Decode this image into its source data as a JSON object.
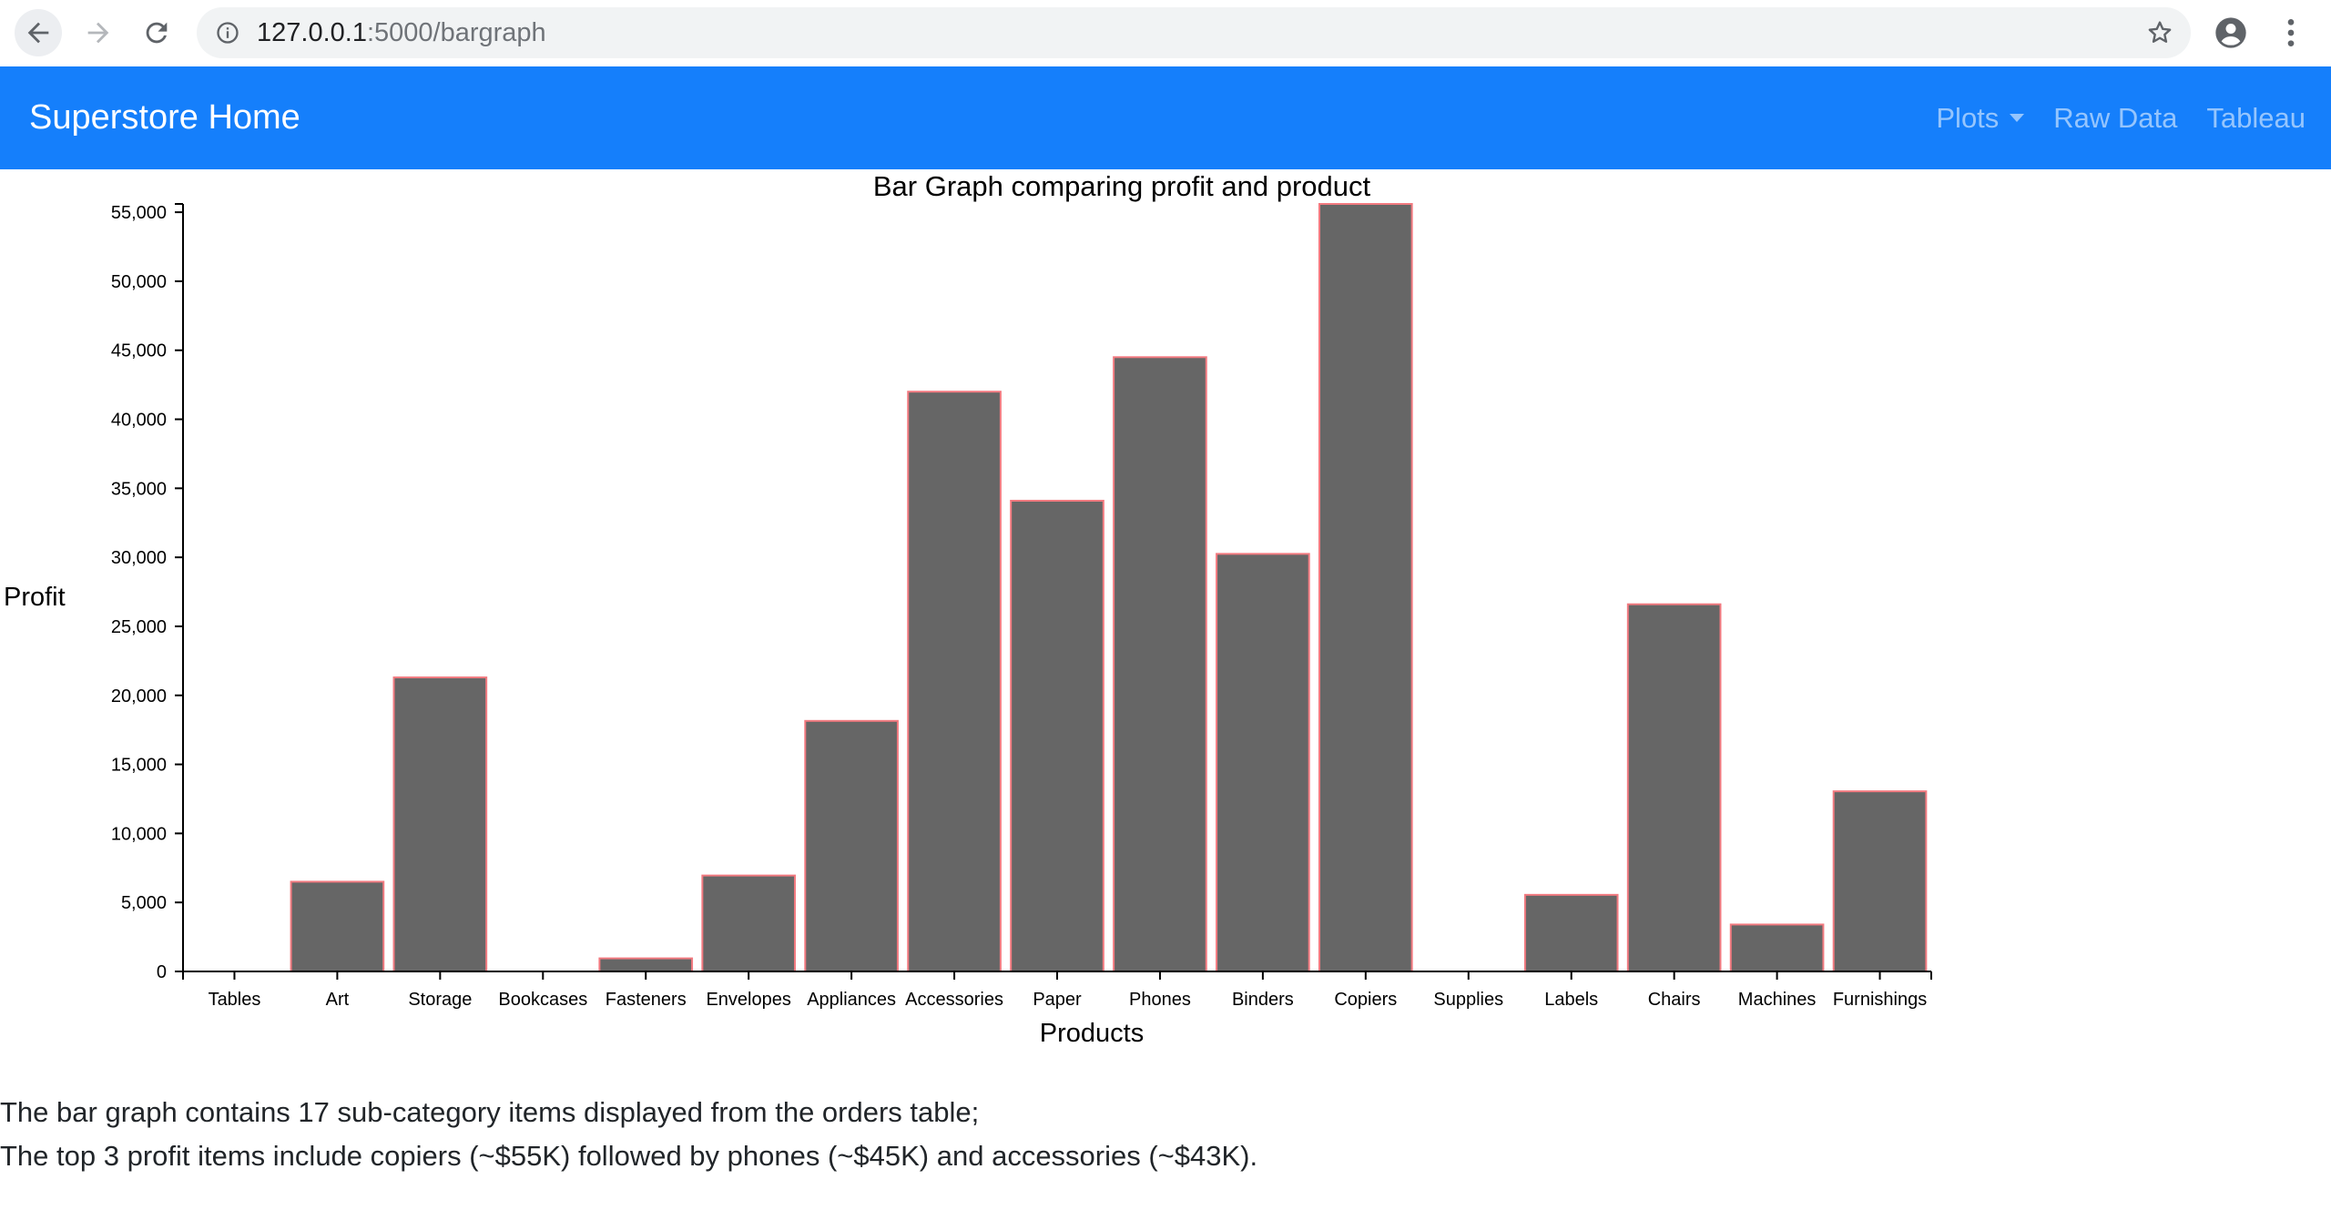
{
  "browser": {
    "url_host": "127.0.0.1",
    "url_path": ":5000/bargraph"
  },
  "navbar": {
    "brand": "Superstore Home",
    "links": [
      {
        "label": "Plots",
        "dropdown": true
      },
      {
        "label": "Raw Data",
        "dropdown": false
      },
      {
        "label": "Tableau",
        "dropdown": false
      }
    ]
  },
  "chart_data": {
    "type": "bar",
    "title": "Bar Graph comparing profit and product",
    "xlabel": "Products",
    "ylabel": "Profit",
    "categories": [
      "Tables",
      "Art",
      "Storage",
      "Bookcases",
      "Fasteners",
      "Envelopes",
      "Appliances",
      "Accessories",
      "Paper",
      "Phones",
      "Binders",
      "Copiers",
      "Supplies",
      "Labels",
      "Chairs",
      "Machines",
      "Furnishings"
    ],
    "values": [
      0,
      6500,
      21300,
      0,
      950,
      6950,
      18150,
      42000,
      34100,
      44500,
      30250,
      55600,
      0,
      5550,
      26600,
      3400,
      13050
    ],
    "ylim": [
      0,
      55600
    ],
    "yticks": [
      0,
      5000,
      10000,
      15000,
      20000,
      25000,
      30000,
      35000,
      40000,
      45000,
      50000,
      55000
    ],
    "ytick_labels": [
      "0",
      "5,000",
      "10,000",
      "15,000",
      "20,000",
      "25,000",
      "30,000",
      "35,000",
      "40,000",
      "45,000",
      "50,000",
      "55,000"
    ],
    "bar_color": "#666666",
    "bar_edge_color": "#f27a80",
    "grid": false,
    "legend": "none"
  },
  "summary": {
    "line1": "The bar graph contains 17 sub-category items displayed from the orders table;",
    "line2": "The top 3 profit items include copiers (~$55K) followed by phones (~$45K) and accessories (~$43K)."
  }
}
